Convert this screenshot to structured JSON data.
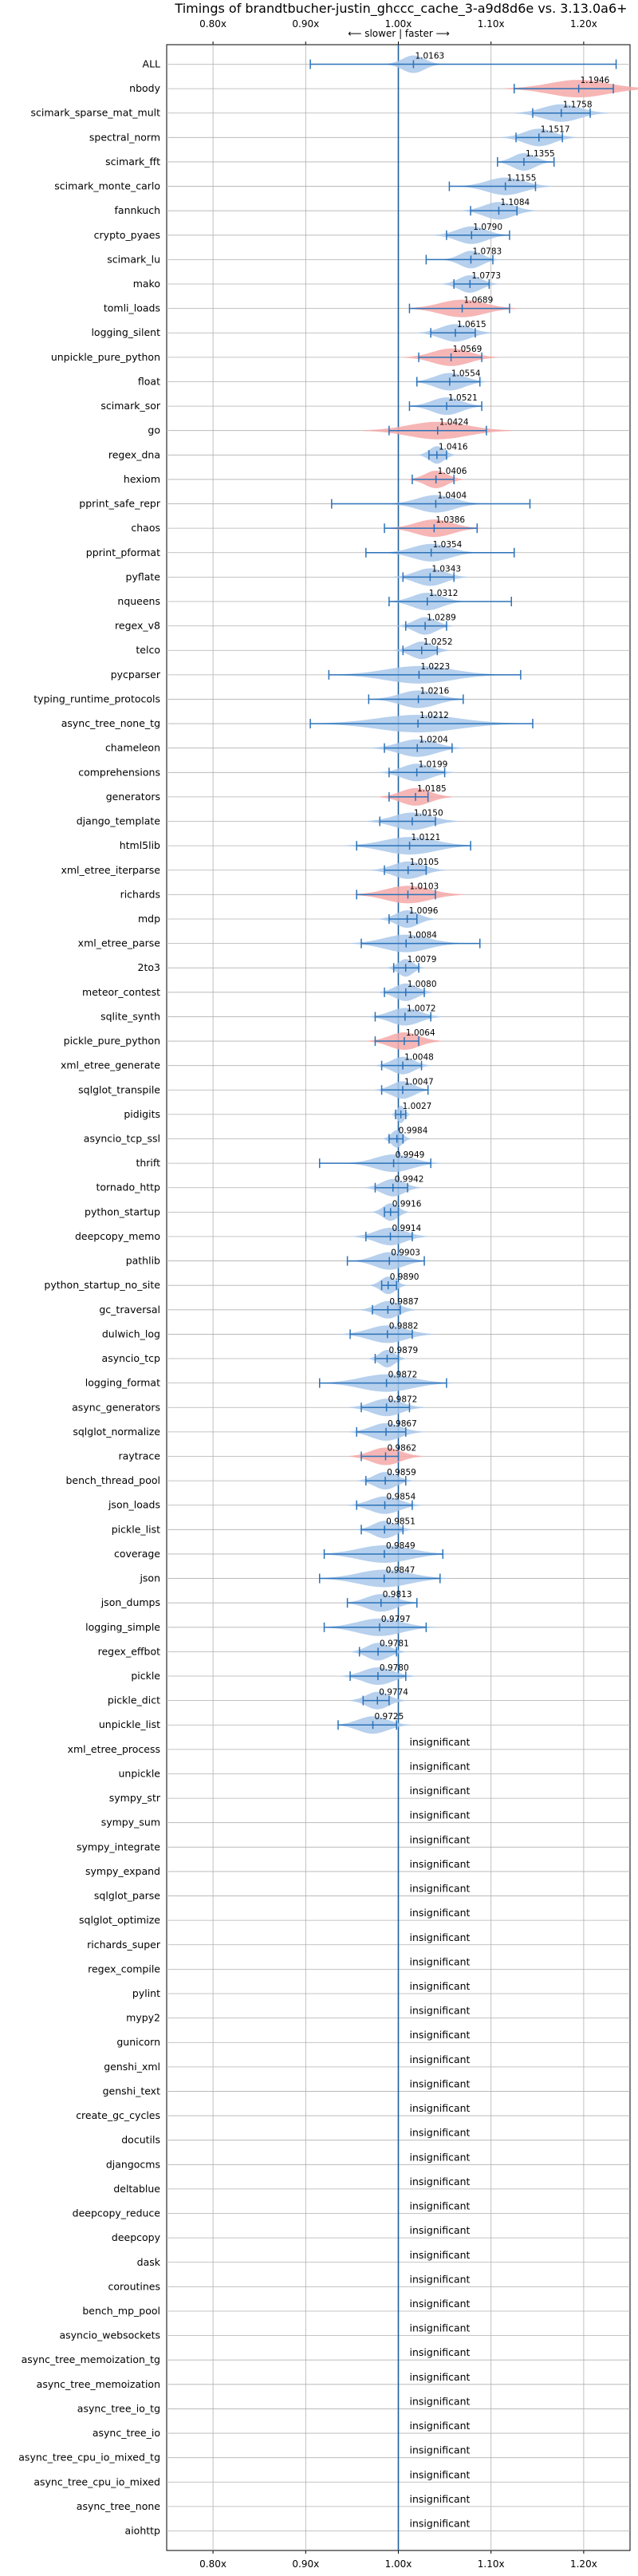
{
  "chart_data": {
    "type": "violin",
    "title": "Timings of brandtbucher-justin_ghccc_cache_3-a9d8d6e vs. 3.13.0a6+",
    "axis_note": "⟵ slower | faster ⟶",
    "xlim": [
      0.75,
      1.25
    ],
    "xticks": [
      0.8,
      0.9,
      1.0,
      1.1,
      1.2
    ],
    "xtick_labels": [
      "0.80x",
      "0.90x",
      "1.00x",
      "1.10x",
      "1.20x"
    ],
    "grid": true,
    "reference_line": 1.0,
    "colors": {
      "faster_fill": "#a9c8ea",
      "slower_fill": "#f4a9a8",
      "errorbar": "#2b72b8",
      "grid": "#b0b0b0",
      "reference": "#1f5f9e"
    },
    "insignificant_label": "insignificant",
    "rows": [
      {
        "name": "ALL",
        "value": 1.0163,
        "label": "1.0163",
        "lo": 0.905,
        "hi": 1.235,
        "width": 0.03,
        "slower": false
      },
      {
        "name": "nbody",
        "value": 1.1946,
        "label": "1.1946",
        "lo": 1.125,
        "hi": 1.232,
        "width": 0.08,
        "slower": true
      },
      {
        "name": "scimark_sparse_mat_mult",
        "value": 1.1758,
        "label": "1.1758",
        "lo": 1.145,
        "hi": 1.207,
        "width": 0.05,
        "slower": false
      },
      {
        "name": "spectral_norm",
        "value": 1.1517,
        "label": "1.1517",
        "lo": 1.127,
        "hi": 1.177,
        "width": 0.04,
        "slower": false
      },
      {
        "name": "scimark_fft",
        "value": 1.1355,
        "label": "1.1355",
        "lo": 1.107,
        "hi": 1.168,
        "width": 0.03,
        "slower": false
      },
      {
        "name": "scimark_monte_carlo",
        "value": 1.1155,
        "label": "1.1155",
        "lo": 1.055,
        "hi": 1.148,
        "width": 0.05,
        "slower": false
      },
      {
        "name": "fannkuch",
        "value": 1.1084,
        "label": "1.1084",
        "lo": 1.078,
        "hi": 1.128,
        "width": 0.04,
        "slower": false
      },
      {
        "name": "crypto_pyaes",
        "value": 1.079,
        "label": "1.0790",
        "lo": 1.052,
        "hi": 1.12,
        "width": 0.04,
        "slower": false
      },
      {
        "name": "scimark_lu",
        "value": 1.0783,
        "label": "1.0783",
        "lo": 1.03,
        "hi": 1.102,
        "width": 0.03,
        "slower": false
      },
      {
        "name": "mako",
        "value": 1.0773,
        "label": "1.0773",
        "lo": 1.06,
        "hi": 1.098,
        "width": 0.03,
        "slower": false
      },
      {
        "name": "tomli_loads",
        "value": 1.0689,
        "label": "1.0689",
        "lo": 1.012,
        "hi": 1.12,
        "width": 0.06,
        "slower": true
      },
      {
        "name": "logging_silent",
        "value": 1.0615,
        "label": "1.0615",
        "lo": 1.035,
        "hi": 1.083,
        "width": 0.04,
        "slower": false
      },
      {
        "name": "unpickle_pure_python",
        "value": 1.0569,
        "label": "1.0569",
        "lo": 1.022,
        "hi": 1.09,
        "width": 0.05,
        "slower": true
      },
      {
        "name": "float",
        "value": 1.0554,
        "label": "1.0554",
        "lo": 1.02,
        "hi": 1.088,
        "width": 0.04,
        "slower": false
      },
      {
        "name": "scimark_sor",
        "value": 1.0521,
        "label": "1.0521",
        "lo": 1.012,
        "hi": 1.09,
        "width": 0.04,
        "slower": false
      },
      {
        "name": "go",
        "value": 1.0424,
        "label": "1.0424",
        "lo": 0.99,
        "hi": 1.095,
        "width": 0.08,
        "slower": true
      },
      {
        "name": "regex_dna",
        "value": 1.0416,
        "label": "1.0416",
        "lo": 1.033,
        "hi": 1.052,
        "width": 0.02,
        "slower": false
      },
      {
        "name": "hexiom",
        "value": 1.0406,
        "label": "1.0406",
        "lo": 1.015,
        "hi": 1.06,
        "width": 0.03,
        "slower": true
      },
      {
        "name": "pprint_safe_repr",
        "value": 1.0404,
        "label": "1.0404",
        "lo": 0.928,
        "hi": 1.142,
        "width": 0.05,
        "slower": false
      },
      {
        "name": "chaos",
        "value": 1.0386,
        "label": "1.0386",
        "lo": 0.985,
        "hi": 1.085,
        "width": 0.05,
        "slower": true
      },
      {
        "name": "pprint_pformat",
        "value": 1.0354,
        "label": "1.0354",
        "lo": 0.965,
        "hi": 1.125,
        "width": 0.05,
        "slower": false
      },
      {
        "name": "pyflate",
        "value": 1.0343,
        "label": "1.0343",
        "lo": 1.005,
        "hi": 1.06,
        "width": 0.04,
        "slower": false
      },
      {
        "name": "nqueens",
        "value": 1.0312,
        "label": "1.0312",
        "lo": 0.99,
        "hi": 1.122,
        "width": 0.04,
        "slower": false
      },
      {
        "name": "regex_v8",
        "value": 1.0289,
        "label": "1.0289",
        "lo": 1.008,
        "hi": 1.052,
        "width": 0.03,
        "slower": false
      },
      {
        "name": "telco",
        "value": 1.0252,
        "label": "1.0252",
        "lo": 1.005,
        "hi": 1.042,
        "width": 0.03,
        "slower": false
      },
      {
        "name": "pycparser",
        "value": 1.0223,
        "label": "1.0223",
        "lo": 0.925,
        "hi": 1.132,
        "width": 0.09,
        "slower": false
      },
      {
        "name": "typing_runtime_protocols",
        "value": 1.0216,
        "label": "1.0216",
        "lo": 0.968,
        "hi": 1.07,
        "width": 0.05,
        "slower": false
      },
      {
        "name": "async_tree_none_tg",
        "value": 1.0212,
        "label": "1.0212",
        "lo": 0.905,
        "hi": 1.145,
        "width": 0.11,
        "slower": false
      },
      {
        "name": "chameleon",
        "value": 1.0204,
        "label": "1.0204",
        "lo": 0.985,
        "hi": 1.058,
        "width": 0.05,
        "slower": false
      },
      {
        "name": "comprehensions",
        "value": 1.0199,
        "label": "1.0199",
        "lo": 0.99,
        "hi": 1.05,
        "width": 0.04,
        "slower": false
      },
      {
        "name": "generators",
        "value": 1.0185,
        "label": "1.0185",
        "lo": 0.99,
        "hi": 1.032,
        "width": 0.04,
        "slower": true
      },
      {
        "name": "django_template",
        "value": 1.015,
        "label": "1.0150",
        "lo": 0.98,
        "hi": 1.04,
        "width": 0.05,
        "slower": false
      },
      {
        "name": "html5lib",
        "value": 1.0121,
        "label": "1.0121",
        "lo": 0.955,
        "hi": 1.078,
        "width": 0.07,
        "slower": false
      },
      {
        "name": "xml_etree_iterparse",
        "value": 1.0105,
        "label": "1.0105",
        "lo": 0.985,
        "hi": 1.03,
        "width": 0.04,
        "slower": false
      },
      {
        "name": "richards",
        "value": 1.0103,
        "label": "1.0103",
        "lo": 0.955,
        "hi": 1.04,
        "width": 0.06,
        "slower": true
      },
      {
        "name": "mdp",
        "value": 1.0096,
        "label": "1.0096",
        "lo": 0.99,
        "hi": 1.02,
        "width": 0.03,
        "slower": false
      },
      {
        "name": "xml_etree_parse",
        "value": 1.0084,
        "label": "1.0084",
        "lo": 0.96,
        "hi": 1.088,
        "width": 0.06,
        "slower": false
      },
      {
        "name": "2to3",
        "value": 1.0079,
        "label": "1.0079",
        "lo": 0.995,
        "hi": 1.022,
        "width": 0.02,
        "slower": false
      },
      {
        "name": "meteor_contest",
        "value": 1.008,
        "label": "1.0080",
        "lo": 0.985,
        "hi": 1.028,
        "width": 0.03,
        "slower": false
      },
      {
        "name": "sqlite_synth",
        "value": 1.0072,
        "label": "1.0072",
        "lo": 0.975,
        "hi": 1.035,
        "width": 0.04,
        "slower": false
      },
      {
        "name": "pickle_pure_python",
        "value": 1.0064,
        "label": "1.0064",
        "lo": 0.975,
        "hi": 1.022,
        "width": 0.04,
        "slower": true
      },
      {
        "name": "xml_etree_generate",
        "value": 1.0048,
        "label": "1.0048",
        "lo": 0.982,
        "hi": 1.025,
        "width": 0.03,
        "slower": false
      },
      {
        "name": "sqlglot_transpile",
        "value": 1.0047,
        "label": "1.0047",
        "lo": 0.982,
        "hi": 1.032,
        "width": 0.03,
        "slower": false
      },
      {
        "name": "pidigits",
        "value": 1.0027,
        "label": "1.0027",
        "lo": 0.997,
        "hi": 1.008,
        "width": 0.01,
        "slower": false
      },
      {
        "name": "asyncio_tcp_ssl",
        "value": 0.9984,
        "label": "0.9984",
        "lo": 0.99,
        "hi": 1.005,
        "width": 0.015,
        "slower": false
      },
      {
        "name": "thrift",
        "value": 0.9949,
        "label": "0.9949",
        "lo": 0.915,
        "hi": 1.035,
        "width": 0.05,
        "slower": false
      },
      {
        "name": "tornado_http",
        "value": 0.9942,
        "label": "0.9942",
        "lo": 0.975,
        "hi": 1.01,
        "width": 0.03,
        "slower": false
      },
      {
        "name": "python_startup",
        "value": 0.9916,
        "label": "0.9916",
        "lo": 0.985,
        "hi": 1.0,
        "width": 0.02,
        "slower": false
      },
      {
        "name": "deepcopy_memo",
        "value": 0.9914,
        "label": "0.9914",
        "lo": 0.965,
        "hi": 1.015,
        "width": 0.04,
        "slower": false
      },
      {
        "name": "pathlib",
        "value": 0.9903,
        "label": "0.9903",
        "lo": 0.945,
        "hi": 1.028,
        "width": 0.04,
        "slower": false
      },
      {
        "name": "python_startup_no_site",
        "value": 0.989,
        "label": "0.9890",
        "lo": 0.982,
        "hi": 0.998,
        "width": 0.02,
        "slower": false
      },
      {
        "name": "gc_traversal",
        "value": 0.9887,
        "label": "0.9887",
        "lo": 0.972,
        "hi": 1.002,
        "width": 0.03,
        "slower": false
      },
      {
        "name": "dulwich_log",
        "value": 0.9882,
        "label": "0.9882",
        "lo": 0.948,
        "hi": 1.015,
        "width": 0.05,
        "slower": false
      },
      {
        "name": "asyncio_tcp",
        "value": 0.9879,
        "label": "0.9879",
        "lo": 0.975,
        "hi": 1.0,
        "width": 0.02,
        "slower": false
      },
      {
        "name": "logging_format",
        "value": 0.9872,
        "label": "0.9872",
        "lo": 0.915,
        "hi": 1.052,
        "width": 0.07,
        "slower": false
      },
      {
        "name": "async_generators",
        "value": 0.9872,
        "label": "0.9872",
        "lo": 0.96,
        "hi": 1.012,
        "width": 0.04,
        "slower": false
      },
      {
        "name": "sqlglot_normalize",
        "value": 0.9867,
        "label": "0.9867",
        "lo": 0.955,
        "hi": 1.008,
        "width": 0.04,
        "slower": false
      },
      {
        "name": "raytrace",
        "value": 0.9862,
        "label": "0.9862",
        "lo": 0.96,
        "hi": 1.0,
        "width": 0.04,
        "slower": true
      },
      {
        "name": "bench_thread_pool",
        "value": 0.9859,
        "label": "0.9859",
        "lo": 0.965,
        "hi": 1.008,
        "width": 0.03,
        "slower": false
      },
      {
        "name": "json_loads",
        "value": 0.9854,
        "label": "0.9854",
        "lo": 0.955,
        "hi": 1.015,
        "width": 0.04,
        "slower": false
      },
      {
        "name": "pickle_list",
        "value": 0.9851,
        "label": "0.9851",
        "lo": 0.96,
        "hi": 1.005,
        "width": 0.03,
        "slower": false
      },
      {
        "name": "coverage",
        "value": 0.9849,
        "label": "0.9849",
        "lo": 0.92,
        "hi": 1.048,
        "width": 0.07,
        "slower": false
      },
      {
        "name": "json",
        "value": 0.9847,
        "label": "0.9847",
        "lo": 0.915,
        "hi": 1.045,
        "width": 0.07,
        "slower": false
      },
      {
        "name": "json_dumps",
        "value": 0.9813,
        "label": "0.9813",
        "lo": 0.945,
        "hi": 1.02,
        "width": 0.04,
        "slower": false
      },
      {
        "name": "logging_simple",
        "value": 0.9797,
        "label": "0.9797",
        "lo": 0.92,
        "hi": 1.03,
        "width": 0.06,
        "slower": false
      },
      {
        "name": "regex_effbot",
        "value": 0.9781,
        "label": "0.9781",
        "lo": 0.958,
        "hi": 0.998,
        "width": 0.03,
        "slower": false
      },
      {
        "name": "pickle",
        "value": 0.978,
        "label": "0.9780",
        "lo": 0.948,
        "hi": 1.008,
        "width": 0.04,
        "slower": false
      },
      {
        "name": "pickle_dict",
        "value": 0.9774,
        "label": "0.9774",
        "lo": 0.962,
        "hi": 0.99,
        "width": 0.03,
        "slower": false
      },
      {
        "name": "unpickle_list",
        "value": 0.9725,
        "label": "0.9725",
        "lo": 0.935,
        "hi": 0.998,
        "width": 0.04,
        "slower": false
      },
      {
        "name": "xml_etree_process",
        "value": null
      },
      {
        "name": "unpickle",
        "value": null
      },
      {
        "name": "sympy_str",
        "value": null
      },
      {
        "name": "sympy_sum",
        "value": null
      },
      {
        "name": "sympy_integrate",
        "value": null
      },
      {
        "name": "sympy_expand",
        "value": null
      },
      {
        "name": "sqlglot_parse",
        "value": null
      },
      {
        "name": "sqlglot_optimize",
        "value": null
      },
      {
        "name": "richards_super",
        "value": null
      },
      {
        "name": "regex_compile",
        "value": null
      },
      {
        "name": "pylint",
        "value": null
      },
      {
        "name": "mypy2",
        "value": null
      },
      {
        "name": "gunicorn",
        "value": null
      },
      {
        "name": "genshi_xml",
        "value": null
      },
      {
        "name": "genshi_text",
        "value": null
      },
      {
        "name": "create_gc_cycles",
        "value": null
      },
      {
        "name": "docutils",
        "value": null
      },
      {
        "name": "djangocms",
        "value": null
      },
      {
        "name": "deltablue",
        "value": null
      },
      {
        "name": "deepcopy_reduce",
        "value": null
      },
      {
        "name": "deepcopy",
        "value": null
      },
      {
        "name": "dask",
        "value": null
      },
      {
        "name": "coroutines",
        "value": null
      },
      {
        "name": "bench_mp_pool",
        "value": null
      },
      {
        "name": "asyncio_websockets",
        "value": null
      },
      {
        "name": "async_tree_memoization_tg",
        "value": null
      },
      {
        "name": "async_tree_memoization",
        "value": null
      },
      {
        "name": "async_tree_io_tg",
        "value": null
      },
      {
        "name": "async_tree_io",
        "value": null
      },
      {
        "name": "async_tree_cpu_io_mixed_tg",
        "value": null
      },
      {
        "name": "async_tree_cpu_io_mixed",
        "value": null
      },
      {
        "name": "async_tree_none",
        "value": null
      },
      {
        "name": "aiohttp",
        "value": null
      }
    ]
  }
}
